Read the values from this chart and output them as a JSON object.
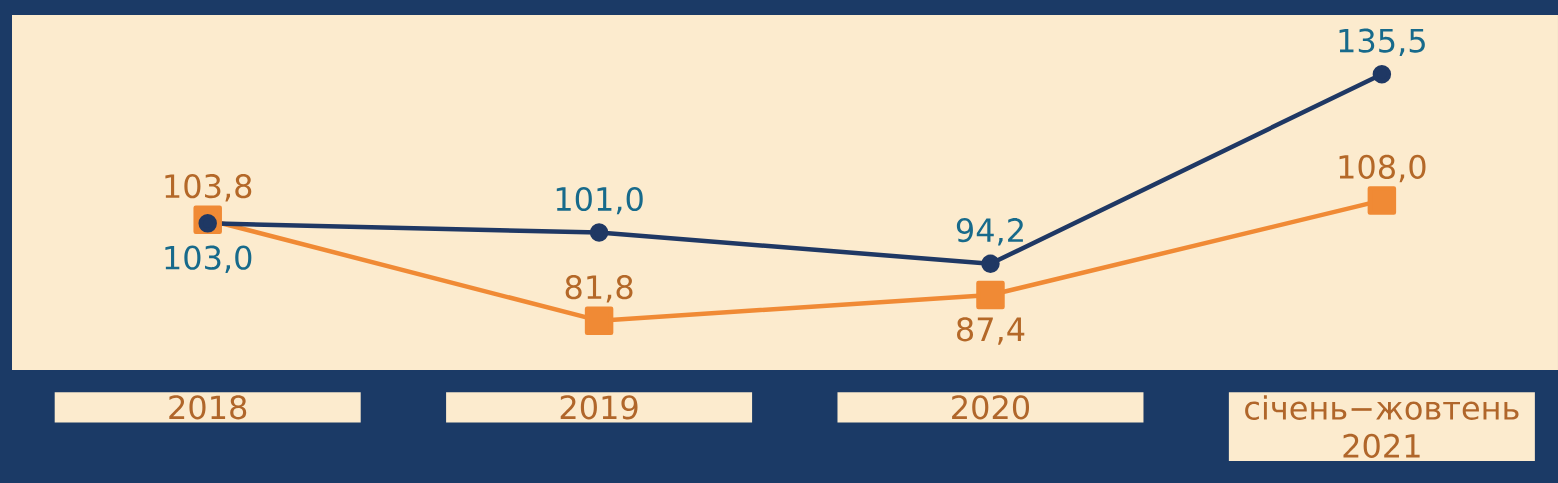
{
  "chart_data": {
    "type": "line",
    "categories": [
      "2018",
      "2019",
      "2020",
      "січень−жовтень 2021"
    ],
    "series": [
      {
        "color": "#1f3864",
        "marker": "circle",
        "values": [
          103.0,
          101.0,
          94.2,
          135.5
        ],
        "value_labels": [
          "103,0",
          "101,0",
          "94,2",
          "135,5"
        ]
      },
      {
        "color": "#f08a35",
        "marker": "square",
        "values": [
          103.8,
          81.8,
          87.4,
          108.0
        ],
        "value_labels": [
          "103,8",
          "81,8",
          "87,4",
          "108,0"
        ]
      }
    ]
  }
}
